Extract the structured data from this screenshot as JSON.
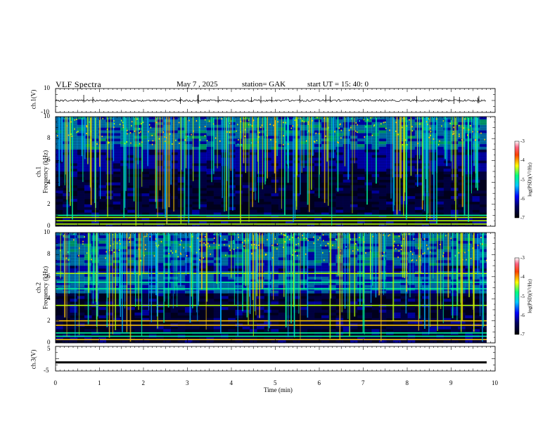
{
  "header": {
    "title": "VLF  Spectra",
    "date": "May 7  , 2025",
    "station": "station= GAK",
    "start": "start  UT  =    15: 40: 0"
  },
  "panels": {
    "ch1_wave": {
      "label": "ch.1(V)",
      "ticks": [
        "10",
        "-10"
      ]
    },
    "ch1_spec": {
      "label_line1": "ch.1",
      "label_line2": "Frequency  (kHz)",
      "ticks": [
        "10",
        "8",
        "6",
        "4",
        "2",
        "0"
      ]
    },
    "ch2_spec": {
      "label_line1": "ch.2",
      "label_line2": "Frequency  (kHz)",
      "ticks": [
        "10",
        "8",
        "6",
        "4",
        "2",
        "0"
      ]
    },
    "ch3_wave": {
      "label": "ch.3(V)",
      "ticks": [
        "5",
        "-5"
      ]
    }
  },
  "xaxis": {
    "label": "Time  (min)",
    "ticks": [
      "0",
      "1",
      "2",
      "3",
      "4",
      "5",
      "6",
      "7",
      "8",
      "9",
      "10"
    ]
  },
  "colorbar": {
    "label": "log(PSD)(V²/Hz)",
    "ticks": [
      "-3",
      "-4",
      "-5",
      "-6",
      "-7"
    ]
  },
  "chart_data": [
    {
      "type": "line",
      "name": "ch.1(V)",
      "ylabel": "ch.1(V)",
      "xlim": [
        0,
        10
      ],
      "ylim": [
        -10,
        10
      ],
      "x": [
        0,
        9.8
      ],
      "y": [
        0,
        0
      ],
      "note": "waveform noise around 0 V"
    },
    {
      "type": "heatmap",
      "ylabel": "ch.1 Frequency (kHz)",
      "xlim": [
        0,
        10
      ],
      "ylim": [
        0,
        10
      ],
      "clim": [
        -7,
        -3
      ],
      "colorbar": "log(PSD)(V²/Hz)"
    },
    {
      "type": "heatmap",
      "ylabel": "ch.2 Frequency (kHz)",
      "xlim": [
        0,
        10
      ],
      "ylim": [
        0,
        10
      ],
      "clim": [
        -7,
        -3
      ],
      "colorbar": "log(PSD)(V²/Hz)"
    },
    {
      "type": "line",
      "name": "ch.3(V)",
      "ylabel": "ch.3(V)",
      "xlim": [
        0,
        10
      ],
      "ylim": [
        -5,
        5
      ],
      "x": [
        0,
        9.8
      ],
      "y": [
        -1.5,
        -1.5
      ]
    }
  ],
  "colors": {
    "ink": "#000000",
    "background": "#ffffff"
  }
}
